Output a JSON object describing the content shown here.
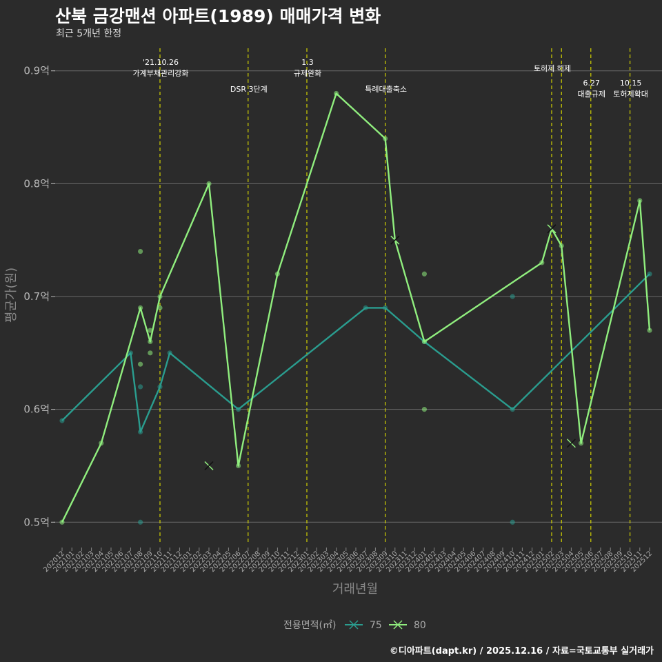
{
  "title": "산북 금강맨션 아파트(1989) 매매가격 변화",
  "subtitle": "최근 5개년 한정",
  "caption": "©디아파트(dapt.kr) / 2025.12.16 / 자료=국토교통부 실거래가",
  "chart_data": {
    "type": "line",
    "title": "산북 금강맨션 아파트(1989) 매매가격 변화",
    "xlabel": "거래년월",
    "ylabel": "평균가(원)",
    "ylim": [
      0.48,
      0.92
    ],
    "y_ticks": [
      0.5,
      0.6,
      0.7,
      0.8,
      0.9
    ],
    "y_tick_labels": [
      "0.5억",
      "0.6억",
      "0.7억",
      "0.8억",
      "0.9억"
    ],
    "months": [
      "202012",
      "202101",
      "202102",
      "202103",
      "202104",
      "202105",
      "202106",
      "202107",
      "202108",
      "202109",
      "202110",
      "202111",
      "202112",
      "202201",
      "202202",
      "202203",
      "202204",
      "202205",
      "202206",
      "202207",
      "202208",
      "202209",
      "202210",
      "202211",
      "202212",
      "202301",
      "202302",
      "202303",
      "202304",
      "202305",
      "202306",
      "202307",
      "202308",
      "202309",
      "202310",
      "202311",
      "202312",
      "202401",
      "202402",
      "202403",
      "202404",
      "202405",
      "202406",
      "202407",
      "202408",
      "202409",
      "202410",
      "202411",
      "202412",
      "202501",
      "202502",
      "202503",
      "202504",
      "202505",
      "202506",
      "202507",
      "202508",
      "202509",
      "202510",
      "202511",
      "202512"
    ],
    "legend_title": "전용면적(㎡)",
    "series": [
      {
        "name": "75",
        "color": "#2a9d8f",
        "line": [
          [
            "202012",
            0.59
          ],
          [
            "202107",
            0.65
          ],
          [
            "202108",
            0.58
          ],
          [
            "202110",
            0.62
          ],
          [
            "202111",
            0.65
          ],
          [
            "202206",
            0.6
          ],
          [
            "202307",
            0.69
          ],
          [
            "202309",
            0.69
          ],
          [
            "202401",
            0.66
          ],
          [
            "202410",
            0.6
          ],
          [
            "202512",
            0.72
          ]
        ],
        "points": [
          [
            "202012",
            0.59
          ],
          [
            "202107",
            0.65
          ],
          [
            "202108",
            0.58
          ],
          [
            "202108",
            0.62
          ],
          [
            "202108",
            0.5
          ],
          [
            "202110",
            0.62
          ],
          [
            "202111",
            0.65
          ],
          [
            "202206",
            0.6
          ],
          [
            "202307",
            0.69
          ],
          [
            "202309",
            0.69
          ],
          [
            "202401",
            0.66
          ],
          [
            "202410",
            0.6
          ],
          [
            "202410",
            0.7
          ],
          [
            "202410",
            0.5
          ],
          [
            "202512",
            0.72
          ]
        ],
        "crosses": []
      },
      {
        "name": "80",
        "color": "#90ee7e",
        "line": [
          [
            "202012",
            0.5
          ],
          [
            "202104",
            0.57
          ],
          [
            "202108",
            0.69
          ],
          [
            "202109",
            0.66
          ],
          [
            "202110",
            0.7
          ],
          [
            "202203",
            0.8
          ],
          [
            "202206",
            0.55
          ],
          [
            "202210",
            0.72
          ],
          [
            "202304",
            0.88
          ],
          [
            "202309",
            0.84
          ],
          [
            "202310",
            0.75
          ],
          [
            "202401",
            0.66
          ],
          [
            "202501",
            0.73
          ],
          [
            "202502",
            0.76
          ],
          [
            "202503",
            0.745
          ],
          [
            "202505",
            0.57
          ],
          [
            "202511",
            0.785
          ],
          [
            "202512",
            0.67
          ]
        ],
        "points": [
          [
            "202012",
            0.5
          ],
          [
            "202104",
            0.57
          ],
          [
            "202108",
            0.69
          ],
          [
            "202108",
            0.74
          ],
          [
            "202108",
            0.64
          ],
          [
            "202109",
            0.66
          ],
          [
            "202109",
            0.67
          ],
          [
            "202109",
            0.65
          ],
          [
            "202110",
            0.7
          ],
          [
            "202110",
            0.69
          ],
          [
            "202203",
            0.8
          ],
          [
            "202206",
            0.55
          ],
          [
            "202210",
            0.72
          ],
          [
            "202304",
            0.88
          ],
          [
            "202309",
            0.84
          ],
          [
            "202401",
            0.66
          ],
          [
            "202401",
            0.72
          ],
          [
            "202401",
            0.6
          ],
          [
            "202501",
            0.73
          ],
          [
            "202503",
            0.745
          ],
          [
            "202505",
            0.57
          ],
          [
            "202511",
            0.785
          ],
          [
            "202512",
            0.67
          ]
        ],
        "crosses": [
          [
            "202203",
            0.55
          ],
          [
            "202310",
            0.75
          ],
          [
            "202502",
            0.76
          ],
          [
            "202504",
            0.57
          ]
        ]
      }
    ],
    "events": [
      {
        "month": "202110",
        "lines": [
          "'21.10.26",
          "가계부채관리강화"
        ],
        "level": 1
      },
      {
        "month": "202207",
        "lines": [
          "DSR 3단계"
        ],
        "level": 3
      },
      {
        "month": "202301",
        "lines": [
          "1.3",
          "규제완화"
        ],
        "level": 1
      },
      {
        "month": "202309",
        "lines": [
          "특례대출축소"
        ],
        "level": 3
      },
      {
        "month": "202502",
        "lines": [
          "토허제 해제"
        ],
        "level": 2
      },
      {
        "month": "202503",
        "lines": [],
        "level": 2
      },
      {
        "month": "202506",
        "lines": [
          "6.27",
          "대출규제"
        ],
        "level": 4
      },
      {
        "month": "202510",
        "lines": [
          "10.15",
          "토허제확대"
        ],
        "level": 4
      }
    ]
  }
}
